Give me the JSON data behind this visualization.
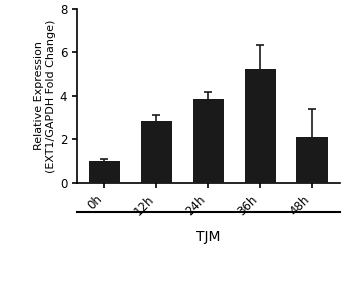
{
  "categories": [
    "0h",
    "12h",
    "24h",
    "36h",
    "48h"
  ],
  "values": [
    1.02,
    2.85,
    3.85,
    5.25,
    2.1
  ],
  "errors": [
    0.08,
    0.25,
    0.35,
    1.1,
    1.3
  ],
  "bar_color": "#1a1a1a",
  "bar_width": 0.6,
  "ylabel": "Relative Expression\n(EXT1/GAPDH Fold Change)",
  "xlabel_group": "TJM",
  "ylim": [
    0,
    8
  ],
  "yticks": [
    0,
    2,
    4,
    6,
    8
  ],
  "background_color": "#ffffff",
  "tick_label_fontsize": 8.5,
  "ylabel_fontsize": 8,
  "xlabel_fontsize": 10,
  "capsize": 3,
  "ecolor": "#1a1a1a",
  "elinewidth": 1.2,
  "capthick": 1.2
}
